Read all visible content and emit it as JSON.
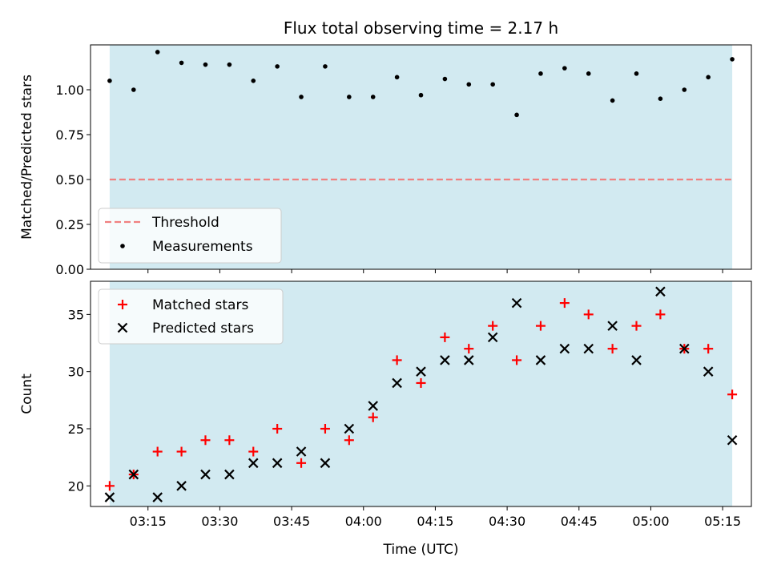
{
  "chart_data": [
    {
      "type": "scatter",
      "title": "Flux total observing time = 2.17 h",
      "xlabel": "",
      "ylabel": "Matched/Predicted stars",
      "ylim": [
        0.0,
        1.25
      ],
      "yticks": [
        "0.00",
        "0.25",
        "0.50",
        "0.75",
        "1.00"
      ],
      "x_time_range": [
        "03:03",
        "05:21"
      ],
      "shaded_interval": [
        "03:07",
        "05:17"
      ],
      "shade_color": "#add8e6",
      "grid": false,
      "legend_position": "lower-left",
      "threshold": {
        "name": "Threshold",
        "value": 0.5,
        "color": "#f08080",
        "style": "dashed"
      },
      "series": [
        {
          "name": "Measurements",
          "color": "#000000",
          "marker": "dot",
          "x": [
            "03:07",
            "03:12",
            "03:17",
            "03:22",
            "03:27",
            "03:32",
            "03:37",
            "03:42",
            "03:47",
            "03:52",
            "03:57",
            "04:02",
            "04:07",
            "04:12",
            "04:17",
            "04:22",
            "04:27",
            "04:32",
            "04:37",
            "04:42",
            "04:47",
            "04:52",
            "04:57",
            "05:02",
            "05:07",
            "05:12",
            "05:17"
          ],
          "values": [
            1.05,
            1.0,
            1.21,
            1.15,
            1.14,
            1.14,
            1.05,
            1.13,
            0.96,
            1.13,
            0.96,
            0.96,
            1.07,
            0.97,
            1.06,
            1.03,
            1.03,
            0.86,
            1.09,
            1.12,
            1.09,
            0.94,
            1.09,
            0.95,
            1.0,
            1.07,
            1.17
          ]
        }
      ]
    },
    {
      "type": "scatter",
      "title": "",
      "xlabel": "Time (UTC)",
      "ylabel": "Count",
      "ylim": [
        18.2,
        37.9
      ],
      "yticks": [
        "20",
        "25",
        "30",
        "35"
      ],
      "xticks": [
        "03:15",
        "03:30",
        "03:45",
        "04:00",
        "04:15",
        "04:30",
        "04:45",
        "05:00",
        "05:15"
      ],
      "x_time_range": [
        "03:03",
        "05:21"
      ],
      "shaded_interval": [
        "03:07",
        "05:17"
      ],
      "shade_color": "#add8e6",
      "grid": false,
      "legend_position": "upper-left",
      "series": [
        {
          "name": "Matched stars",
          "color": "#ff0000",
          "marker": "plus",
          "x": [
            "03:07",
            "03:12",
            "03:17",
            "03:22",
            "03:27",
            "03:32",
            "03:37",
            "03:42",
            "03:47",
            "03:52",
            "03:57",
            "04:02",
            "04:07",
            "04:12",
            "04:17",
            "04:22",
            "04:27",
            "04:32",
            "04:37",
            "04:42",
            "04:47",
            "04:52",
            "04:57",
            "05:02",
            "05:07",
            "05:12",
            "05:17"
          ],
          "values": [
            20,
            21,
            23,
            23,
            24,
            24,
            23,
            25,
            22,
            25,
            24,
            26,
            31,
            29,
            33,
            32,
            34,
            31,
            34,
            36,
            35,
            32,
            34,
            35,
            32,
            32,
            28
          ]
        },
        {
          "name": "Predicted stars",
          "color": "#000000",
          "marker": "x",
          "x": [
            "03:07",
            "03:12",
            "03:17",
            "03:22",
            "03:27",
            "03:32",
            "03:37",
            "03:42",
            "03:47",
            "03:52",
            "03:57",
            "04:02",
            "04:07",
            "04:12",
            "04:17",
            "04:22",
            "04:27",
            "04:32",
            "04:37",
            "04:42",
            "04:47",
            "04:52",
            "04:57",
            "05:02",
            "05:07",
            "05:12",
            "05:17"
          ],
          "values": [
            19,
            21,
            19,
            20,
            21,
            21,
            22,
            22,
            23,
            22,
            25,
            27,
            29,
            30,
            31,
            31,
            33,
            36,
            31,
            32,
            32,
            34,
            31,
            37,
            32,
            30,
            24
          ]
        }
      ]
    }
  ]
}
